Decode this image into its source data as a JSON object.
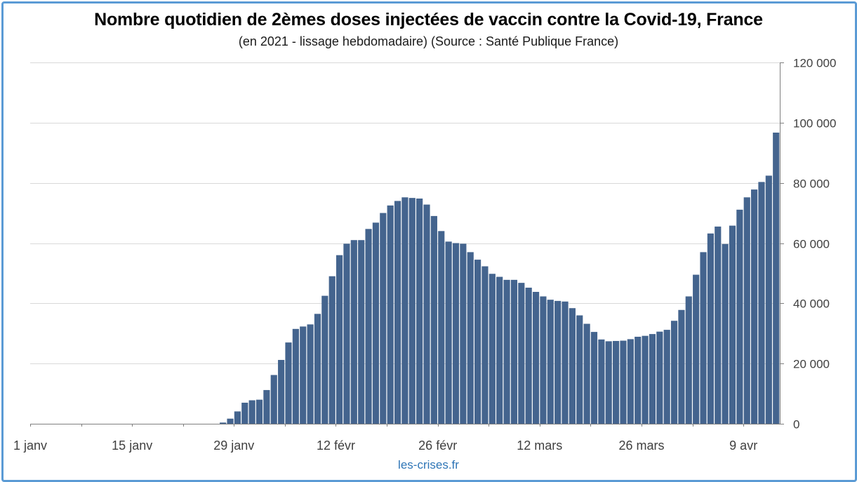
{
  "chart_data": {
    "type": "bar",
    "title": "Nombre quotidien de 2èmes doses injectées de vaccin contre la Covid-19, France",
    "subtitle": "(en 2021 - lissage hebdomadaire) (Source : Santé Publique France)",
    "xlabel": "",
    "ylabel": "",
    "x_start": "2021-01-01",
    "x_end": "2021-04-14",
    "x_tick_labels": [
      "1 janv",
      "15 janv",
      "29 janv",
      "12 févr",
      "26 févr",
      "12 mars",
      "26 mars",
      "9 avr"
    ],
    "x_tick_dates": [
      "2021-01-01",
      "2021-01-15",
      "2021-01-29",
      "2021-02-12",
      "2021-02-26",
      "2021-03-12",
      "2021-03-26",
      "2021-04-09"
    ],
    "ylim": [
      0,
      120000
    ],
    "y_tick_labels": [
      "0",
      "20 000",
      "40 000",
      "60 000",
      "80 000",
      "100 000",
      "120 000"
    ],
    "y_tick_values": [
      0,
      20000,
      40000,
      60000,
      80000,
      100000,
      120000
    ],
    "y_axis_side": "right",
    "grid": true,
    "bar_color": "#44648e",
    "series": [
      {
        "values": [
          0,
          0,
          0,
          0,
          0,
          0,
          0,
          0,
          0,
          0,
          0,
          0,
          0,
          0,
          0,
          0,
          0,
          0,
          0,
          0,
          0,
          0,
          0,
          0,
          0,
          0,
          400,
          1700,
          4100,
          7000,
          7800,
          8000,
          11200,
          16200,
          21200,
          27000,
          31500,
          32300,
          33000,
          36500,
          42500,
          49000,
          56000,
          59800,
          61000,
          61000,
          64700,
          66800,
          70000,
          72500,
          74000,
          75200,
          75000,
          74800,
          72800,
          69000,
          64000,
          60500,
          60000,
          59800,
          57000,
          54500,
          52300,
          49800,
          48800,
          47800,
          47800,
          46800,
          45200,
          43800,
          42300,
          41200,
          40800,
          40600,
          38400,
          36000,
          33200,
          30500,
          28000,
          27400,
          27500,
          27600,
          28100,
          28900,
          29200,
          29800,
          30600,
          31200,
          34200,
          37800,
          42300,
          49500,
          57000,
          63200,
          65500,
          59700,
          65800,
          71100,
          75200,
          77800,
          80300,
          82400,
          96700
        ]
      }
    ],
    "footer": "les-crises.fr"
  }
}
